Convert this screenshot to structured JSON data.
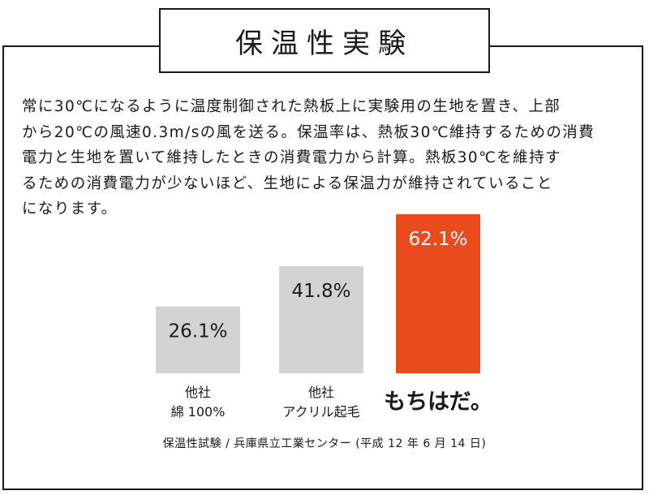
{
  "title": "保温性実験",
  "description": "常に30℃になるように温度制御された熱板上に実験用の生地を置き、上部\nから20℃の風速0.3m/sの風を送る。保温率は、熱板30℃維持するための消費\n電力と生地を置いて維持したときの消費電力から計算。熱板30℃を維持す\nるための消費電力が少ないほど、生地による保温力が維持されていること\nになります。",
  "source": "保温性試験 / 兵庫県立工業センター (平成 12 年 6 月 14 日)",
  "colors": {
    "gray_bar": "#d3d3d3",
    "accent_bar": "#e94a1e",
    "text": "#1a1a1a",
    "label_on_accent": "#ffffff"
  },
  "chart_data": {
    "type": "bar",
    "categories": [
      "他社\n綿 100%",
      "他社\nアクリル起毛",
      "もちはだ。"
    ],
    "values": [
      26.1,
      41.8,
      62.1
    ],
    "value_labels": [
      "26.1%",
      "41.8%",
      "62.1%"
    ],
    "unit": "%",
    "ylim": [
      0,
      62.1
    ],
    "highlight_index": 2,
    "grid": false,
    "legend": "none"
  }
}
